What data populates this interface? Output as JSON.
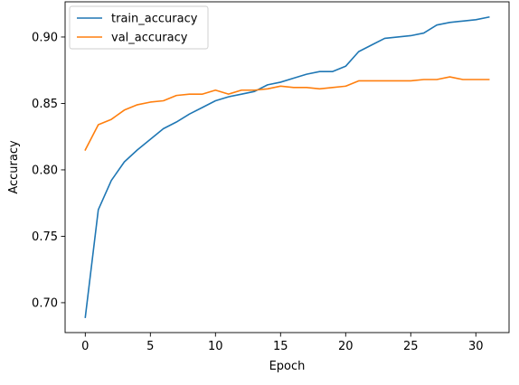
{
  "chart_data": {
    "type": "line",
    "title": "",
    "xlabel": "Epoch",
    "ylabel": "Accuracy",
    "xlim": [
      -1.55,
      32.55
    ],
    "ylim": [
      0.6775,
      0.9265
    ],
    "xticks": [
      0,
      5,
      10,
      15,
      20,
      25,
      30
    ],
    "yticks": [
      0.7,
      0.75,
      0.8,
      0.85,
      0.9
    ],
    "xtick_labels": [
      "0",
      "5",
      "10",
      "15",
      "20",
      "25",
      "30"
    ],
    "ytick_labels": [
      "0.70",
      "0.75",
      "0.80",
      "0.85",
      "0.90"
    ],
    "grid": false,
    "legend_position": "top-left",
    "x": [
      0,
      1,
      2,
      3,
      4,
      5,
      6,
      7,
      8,
      9,
      10,
      11,
      12,
      13,
      14,
      15,
      16,
      17,
      18,
      19,
      20,
      21,
      22,
      23,
      24,
      25,
      26,
      27,
      28,
      29,
      30,
      31
    ],
    "series": [
      {
        "name": "train_accuracy",
        "color": "#1f77b4",
        "values": [
          0.689,
          0.77,
          0.792,
          0.806,
          0.815,
          0.823,
          0.831,
          0.836,
          0.842,
          0.847,
          0.852,
          0.855,
          0.857,
          0.859,
          0.864,
          0.866,
          0.869,
          0.872,
          0.874,
          0.874,
          0.878,
          0.889,
          0.894,
          0.899,
          0.9,
          0.901,
          0.903,
          0.909,
          0.911,
          0.912,
          0.913,
          0.915
        ]
      },
      {
        "name": "val_accuracy",
        "color": "#ff7f0e",
        "values": [
          0.815,
          0.834,
          0.838,
          0.845,
          0.849,
          0.851,
          0.852,
          0.856,
          0.857,
          0.857,
          0.86,
          0.857,
          0.86,
          0.86,
          0.861,
          0.863,
          0.862,
          0.862,
          0.861,
          0.862,
          0.863,
          0.867,
          0.867,
          0.867,
          0.867,
          0.867,
          0.868,
          0.868,
          0.87,
          0.868,
          0.868,
          0.868
        ]
      }
    ]
  }
}
